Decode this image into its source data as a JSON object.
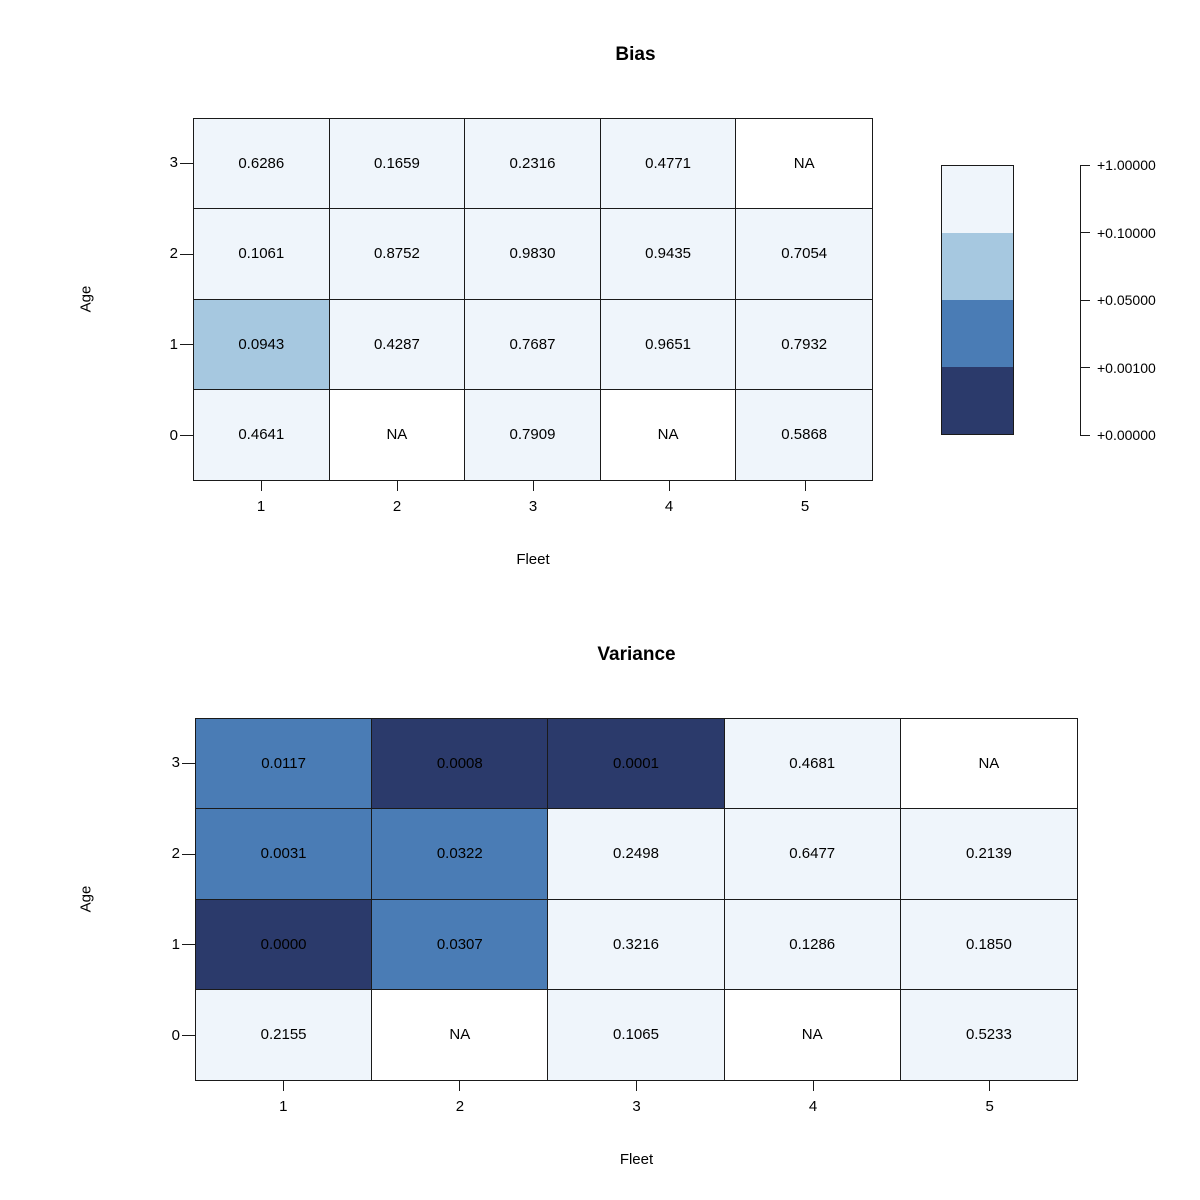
{
  "figure": {
    "background": "#ffffff"
  },
  "chart_data": [
    {
      "type": "heatmap",
      "title": "Bias",
      "xlabel": "Fleet",
      "ylabel": "Age",
      "x_ticks": [
        "1",
        "2",
        "3",
        "4",
        "5"
      ],
      "y_ticks": [
        "3",
        "2",
        "1",
        "0"
      ],
      "values": [
        [
          0.6286,
          0.1659,
          0.2316,
          0.4771,
          null
        ],
        [
          0.1061,
          0.8752,
          0.983,
          0.9435,
          0.7054
        ],
        [
          0.0943,
          0.4287,
          0.7687,
          0.9651,
          0.7932
        ],
        [
          0.4641,
          null,
          0.7909,
          null,
          0.5868
        ]
      ],
      "labels": [
        [
          "0.6286",
          "0.1659",
          "0.2316",
          "0.4771",
          "NA"
        ],
        [
          "0.1061",
          "0.8752",
          "0.9830",
          "0.9435",
          "0.7054"
        ],
        [
          "0.0943",
          "0.4287",
          "0.7687",
          "0.9651",
          "0.7932"
        ],
        [
          "0.4641",
          "NA",
          "0.7909",
          "NA",
          "0.5868"
        ]
      ]
    },
    {
      "type": "heatmap",
      "title": "Variance",
      "xlabel": "Fleet",
      "ylabel": "Age",
      "x_ticks": [
        "1",
        "2",
        "3",
        "4",
        "5"
      ],
      "y_ticks": [
        "3",
        "2",
        "1",
        "0"
      ],
      "values": [
        [
          0.0117,
          0.0008,
          0.0001,
          0.4681,
          null
        ],
        [
          0.0031,
          0.0322,
          0.2498,
          0.6477,
          0.2139
        ],
        [
          0.0,
          0.0307,
          0.3216,
          0.1286,
          0.185
        ],
        [
          0.2155,
          null,
          0.1065,
          null,
          0.5233
        ]
      ],
      "labels": [
        [
          "0.0117",
          "0.0008",
          "0.0001",
          "0.4681",
          "NA"
        ],
        [
          "0.0031",
          "0.0322",
          "0.2498",
          "0.6477",
          "0.2139"
        ],
        [
          "0.0000",
          "0.0307",
          "0.3216",
          "0.1286",
          "0.1850"
        ],
        [
          "0.2155",
          "NA",
          "0.1065",
          "NA",
          "0.5233"
        ]
      ]
    }
  ],
  "legend": {
    "tick_labels": [
      "+1.00000",
      "+0.10000",
      "+0.05000",
      "+0.00100",
      "+0.00000"
    ],
    "segment_colors_top_to_bottom": [
      "#eff5fb",
      "#a6c8e0",
      "#4a7cb5",
      "#2b3a6b"
    ]
  },
  "color_scale": {
    "breaks": [
      0.0,
      0.001,
      0.05,
      0.1,
      1.0
    ],
    "na_color": "#ffffff",
    "na_label": "NA"
  }
}
